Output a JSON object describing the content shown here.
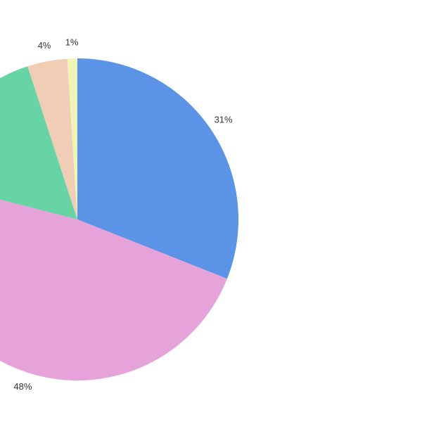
{
  "chart_data": {
    "type": "pie",
    "values": [
      31,
      48,
      16,
      4,
      1
    ],
    "value_labels": [
      "31%",
      "48%",
      null,
      "4%",
      "1%"
    ],
    "colors": [
      "#5b93e6",
      "#e5a3d9",
      "#66d4a4",
      "#f2cdb5",
      "#eef5b7"
    ]
  }
}
